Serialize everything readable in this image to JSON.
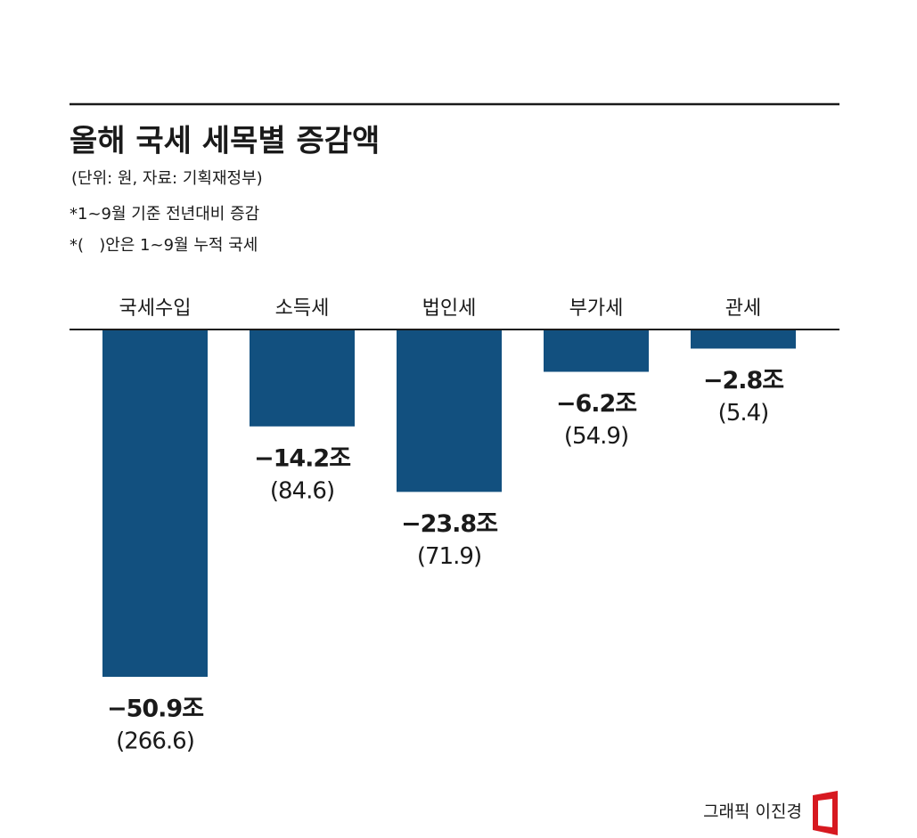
{
  "chart_data": {
    "type": "bar",
    "title": "올해 국세 세목별 증감액",
    "subtitle": "(단위: 원, 자료: 기획재정부)",
    "notes": [
      "*1~9월 기준 전년대비 증감",
      "*(   )안은 1~9월 누적 국세"
    ],
    "categories": [
      "국세수입",
      "소득세",
      "법인세",
      "부가세",
      "관세"
    ],
    "values": [
      -50.9,
      -14.2,
      -23.8,
      -6.2,
      -2.8
    ],
    "value_labels": [
      "−50.9조",
      "−14.2조",
      "−23.8조",
      "−6.2조",
      "−2.8조"
    ],
    "cumulative": {
      "values": [
        266.6,
        84.6,
        71.9,
        54.9,
        5.4
      ],
      "value_labels": [
        "(266.6)",
        "(84.6)",
        "(71.9)",
        "(54.9)",
        "(5.4)"
      ]
    },
    "color": "#12507f",
    "credit": "그래픽 이진경"
  }
}
